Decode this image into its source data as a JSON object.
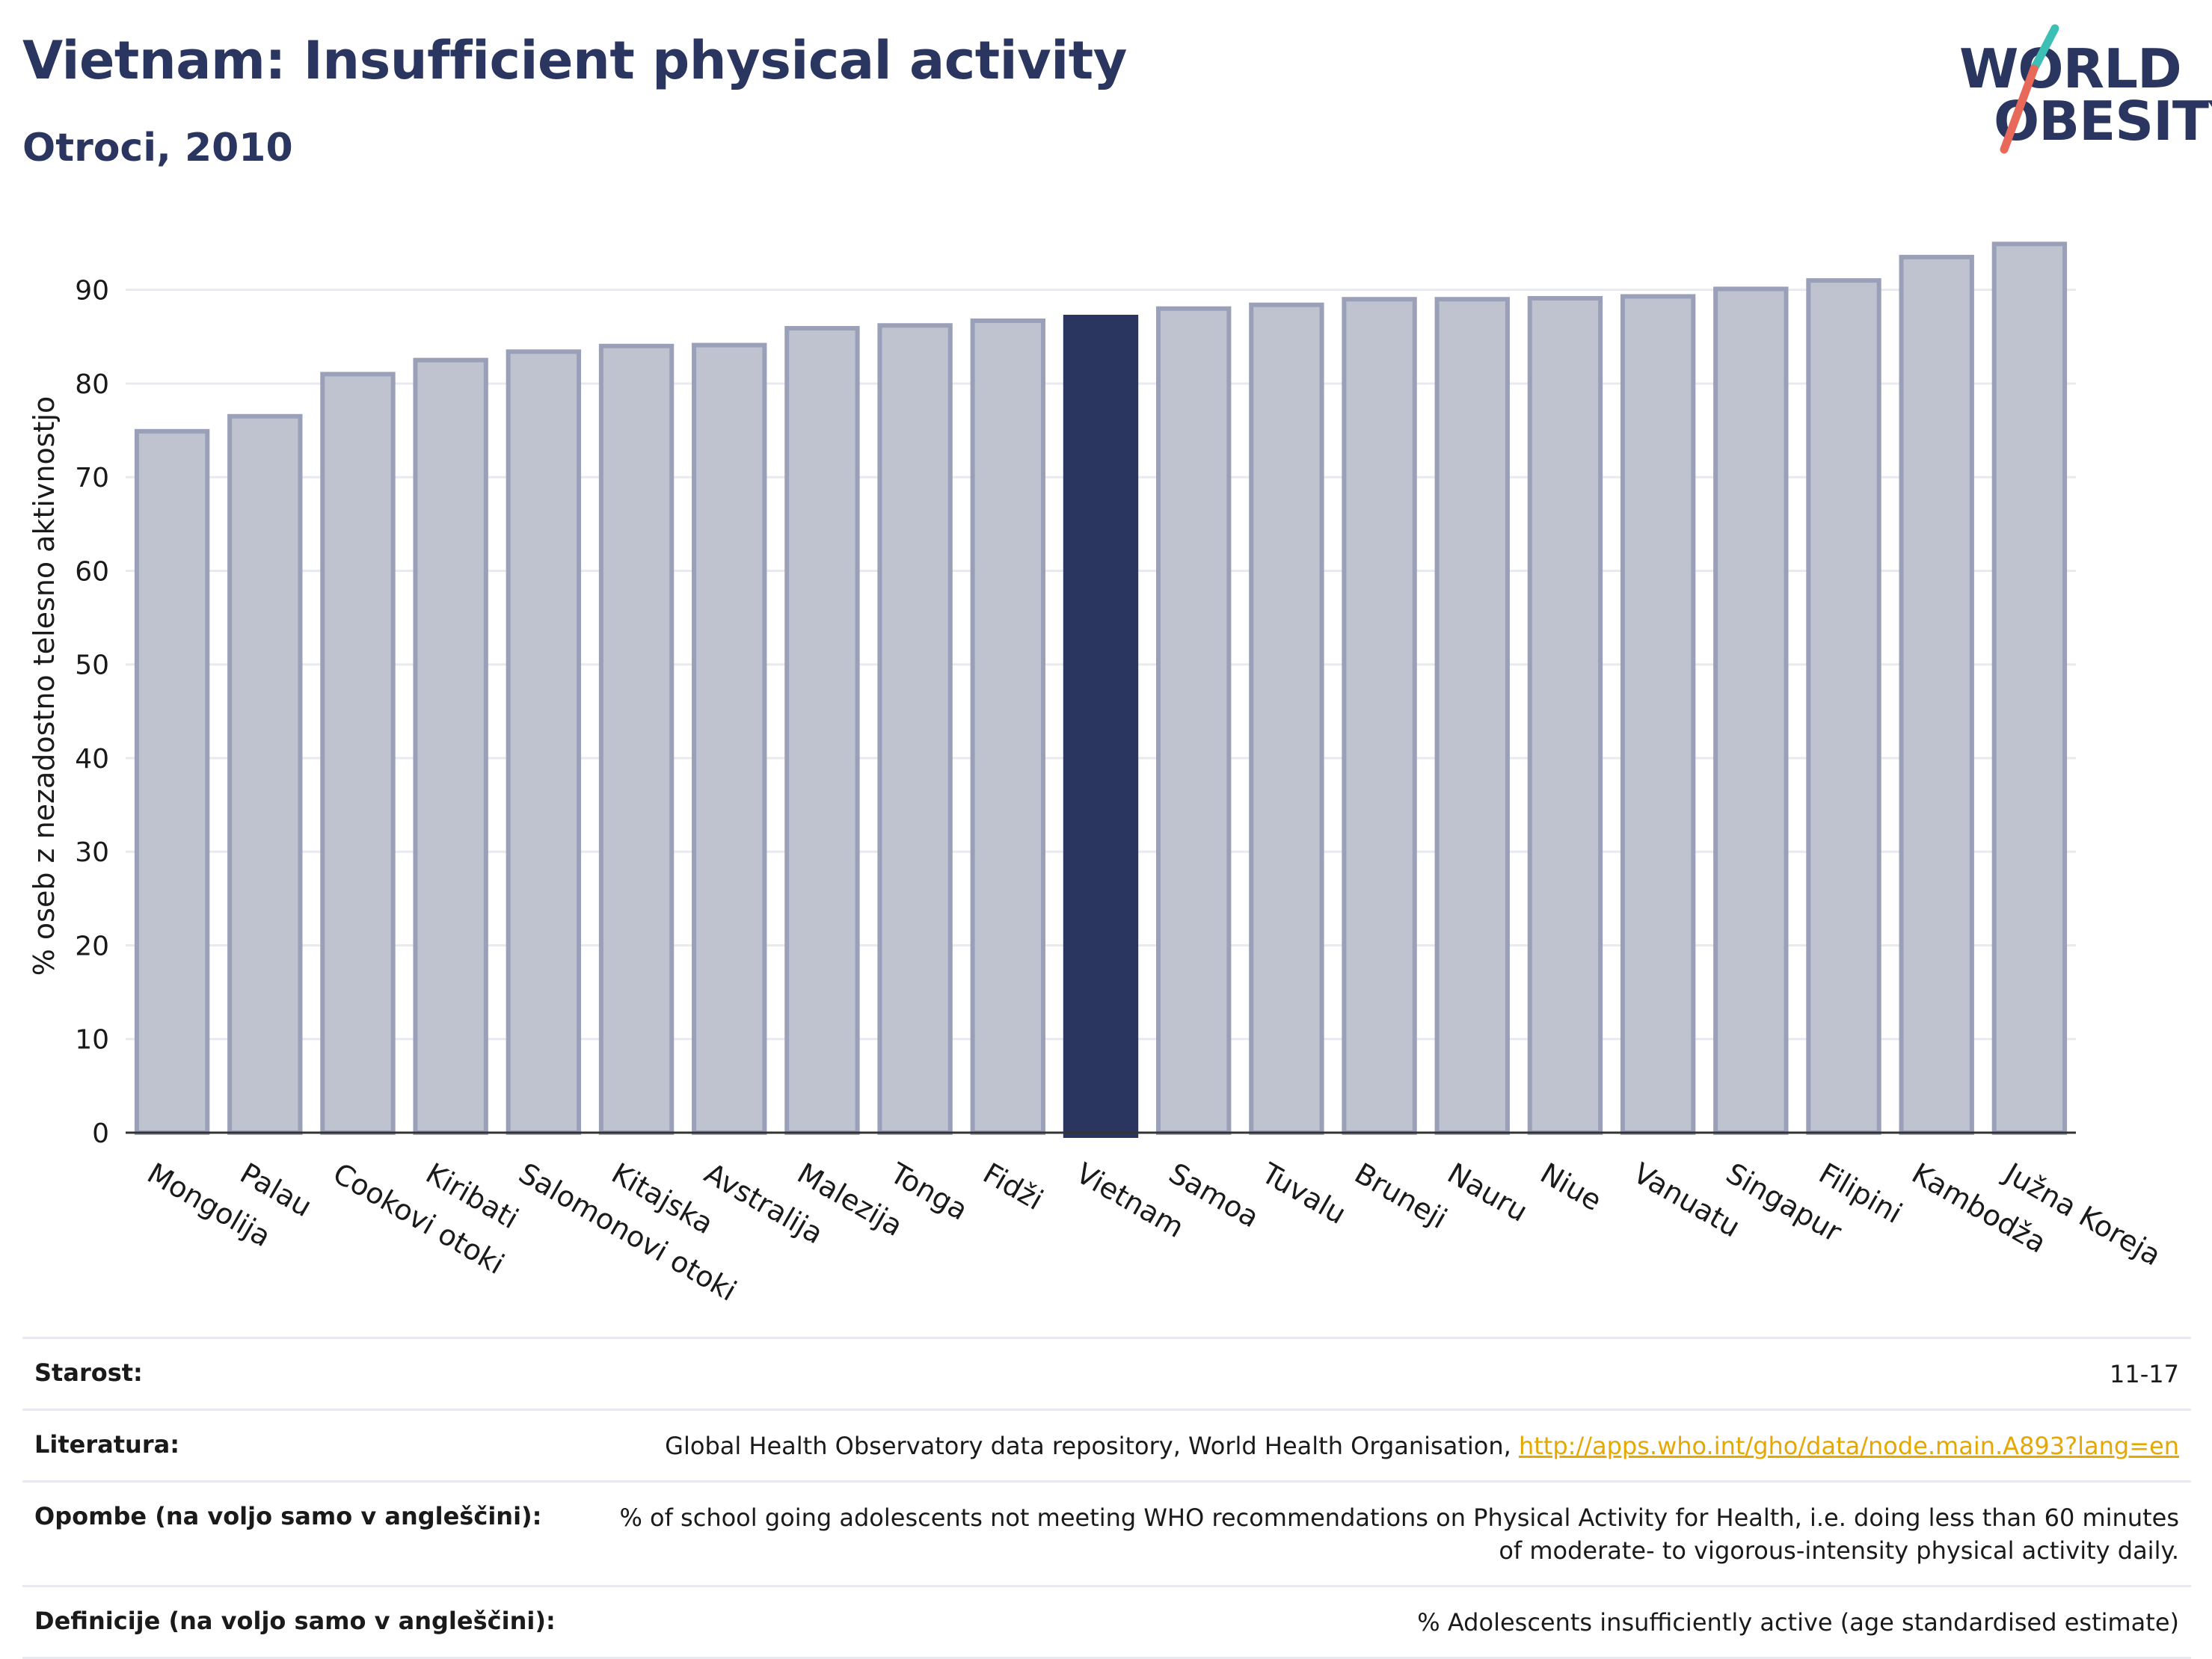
{
  "header": {
    "title": "Vietnam: Insufficient physical activity",
    "subtitle": "Otroci, 2010"
  },
  "logo": {
    "line1": "WORLD",
    "line2": "OBESITY",
    "accent_teal": "#3cbfb4",
    "accent_red": "#e8695a"
  },
  "colors": {
    "bar": "#bfc2cf",
    "bar_stroke": "#9aa0b8",
    "highlight": "#2a3560"
  },
  "chart_data": {
    "type": "bar",
    "title": "Vietnam: Insufficient physical activity",
    "subtitle": "Otroci, 2010",
    "ylabel": "% oseb z nezadostno telesno aktivnostjo",
    "xlabel": "",
    "ylim": [
      0,
      97
    ],
    "yticks": [
      0,
      10,
      20,
      30,
      40,
      50,
      60,
      70,
      80,
      90
    ],
    "grid": true,
    "highlight": "Vietnam",
    "categories": [
      "Mongolija",
      "Palau",
      "Cookovi otoki",
      "Kiribati",
      "Salomonovi otoki",
      "Kitajska",
      "Avstralija",
      "Malezija",
      "Tonga",
      "Fidži",
      "Vietnam",
      "Samoa",
      "Tuvalu",
      "Bruneji",
      "Nauru",
      "Niue",
      "Vanuatu",
      "Singapur",
      "Filipini",
      "Kambodža",
      "Južna Koreja"
    ],
    "values": [
      74.9,
      76.5,
      81.0,
      82.5,
      83.4,
      84.0,
      84.1,
      85.9,
      86.2,
      86.7,
      87.1,
      88.0,
      88.4,
      89.0,
      89.0,
      89.1,
      89.3,
      90.1,
      91.0,
      93.5,
      94.9
    ]
  },
  "footer": {
    "age_label": "Starost:",
    "age_value": "11-17",
    "ref_label": "Literatura:",
    "ref_text": "Global Health Observatory data repository, World Health Organisation,",
    "ref_link": "http://apps.who.int/gho/data/node.main.A893?lang=en",
    "notes_label": "Opombe (na voljo samo v angleščini):",
    "notes_value": "% of school going adolescents not meeting WHO recommendations on Physical Activity for Health, i.e. doing less than 60 minutes of moderate- to vigorous-intensity physical activity daily.",
    "def_label": "Definicije (na voljo samo v angleščini):",
    "def_value": "% Adolescents insufficiently active (age standardised estimate)"
  }
}
